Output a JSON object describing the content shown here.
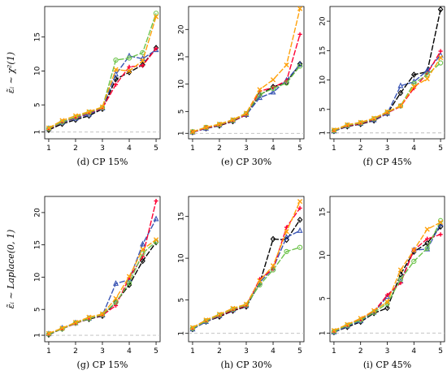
{
  "colors": {
    "black": "#000000",
    "blue": "#3a55b4",
    "red": "#ff0033",
    "green": "#6cc34a",
    "orange": "#ffa10a",
    "reference_line": "#bbbbbb"
  },
  "chart_data": [
    {
      "type": "line",
      "caption": "(d)    CP 15%",
      "ylabel": "ε̃ᵢ ~ χ²(1)",
      "x": [
        1,
        1.5,
        2,
        2.5,
        3,
        3.5,
        4,
        4.5,
        5
      ],
      "xticks": [
        1,
        2,
        3,
        4,
        5
      ],
      "ylim": [
        0,
        19.5
      ],
      "yticks": [
        1,
        5,
        10,
        15
      ],
      "reference_y": 1,
      "series": [
        {
          "color": "black",
          "marker": "diamond",
          "values": [
            1.3,
            2.2,
            2.8,
            3.4,
            4.4,
            8.8,
            9.8,
            10.9,
            13.4
          ]
        },
        {
          "color": "blue",
          "marker": "triangle",
          "values": [
            1.5,
            2.4,
            3.0,
            3.6,
            4.5,
            9.5,
            12.2,
            11.8,
            13.1
          ]
        },
        {
          "color": "red",
          "marker": "plus",
          "values": [
            1.4,
            2.5,
            3.1,
            3.8,
            4.5,
            8.0,
            10.6,
            10.8,
            13.3
          ]
        },
        {
          "color": "green",
          "marker": "circle",
          "values": [
            1.5,
            2.5,
            3.2,
            3.9,
            4.6,
            11.6,
            11.9,
            12.7,
            18.5
          ]
        },
        {
          "color": "orange",
          "marker": "cross",
          "values": [
            1.6,
            2.7,
            3.4,
            4.0,
            4.7,
            10.2,
            10.0,
            11.5,
            18.0
          ]
        }
      ]
    },
    {
      "type": "line",
      "caption": "(e)    CP 30%",
      "x": [
        1,
        1.5,
        2,
        2.5,
        3,
        3.5,
        4,
        4.5,
        5
      ],
      "xticks": [
        1,
        2,
        3,
        4,
        5
      ],
      "ylim": [
        0,
        24.2
      ],
      "yticks": [
        1,
        5,
        10,
        15,
        20
      ],
      "reference_y": 1,
      "series": [
        {
          "color": "black",
          "marker": "diamond",
          "values": [
            1.2,
            1.9,
            2.4,
            3.2,
            4.4,
            8.0,
            9.5,
            10.3,
            13.7
          ]
        },
        {
          "color": "blue",
          "marker": "triangle",
          "values": [
            1.2,
            1.9,
            2.5,
            3.3,
            4.4,
            7.5,
            8.5,
            10.7,
            13.6
          ]
        },
        {
          "color": "red",
          "marker": "plus",
          "values": [
            1.2,
            2.0,
            2.5,
            3.3,
            4.4,
            8.7,
            9.4,
            10.6,
            19.1
          ]
        },
        {
          "color": "green",
          "marker": "circle",
          "values": [
            1.3,
            2.1,
            2.6,
            3.4,
            4.6,
            8.1,
            9.2,
            10.2,
            13.3
          ]
        },
        {
          "color": "orange",
          "marker": "cross",
          "values": [
            1.3,
            2.1,
            2.7,
            3.5,
            4.7,
            9.0,
            10.8,
            13.5,
            23.8
          ]
        }
      ]
    },
    {
      "type": "line",
      "caption": "(f)    CP 45%",
      "x": [
        1,
        1.5,
        2,
        2.5,
        3,
        3.5,
        4,
        4.5,
        5
      ],
      "xticks": [
        1,
        2,
        3,
        4,
        5
      ],
      "ylim": [
        0,
        22.5
      ],
      "yticks": [
        1,
        5,
        10,
        15,
        20
      ],
      "reference_y": 1,
      "series": [
        {
          "color": "black",
          "marker": "diamond",
          "values": [
            1.3,
            2.1,
            2.5,
            3.1,
            4.3,
            7.8,
            10.9,
            11.4,
            22.0
          ]
        },
        {
          "color": "blue",
          "marker": "triangle",
          "values": [
            1.3,
            2.2,
            2.6,
            3.2,
            4.3,
            9.0,
            9.7,
            11.6,
            14.2
          ]
        },
        {
          "color": "red",
          "marker": "plus",
          "values": [
            1.4,
            2.2,
            2.6,
            3.3,
            4.4,
            5.5,
            8.6,
            11.1,
            14.9
          ]
        },
        {
          "color": "green",
          "marker": "circle",
          "values": [
            1.4,
            2.3,
            2.7,
            3.4,
            4.5,
            5.6,
            9.4,
            10.9,
            12.9
          ]
        },
        {
          "color": "orange",
          "marker": "cross",
          "values": [
            1.5,
            2.4,
            2.8,
            3.5,
            4.6,
            5.6,
            8.9,
            10.2,
            13.8
          ]
        }
      ]
    },
    {
      "type": "line",
      "caption": "(g)    CP 15%",
      "ylabel": "ε̃ᵢ ~ Laplace(0, 1)",
      "x": [
        1,
        1.5,
        2,
        2.5,
        3,
        3.5,
        4,
        4.5,
        5
      ],
      "xticks": [
        1,
        2,
        3,
        4,
        5
      ],
      "ylim": [
        0,
        22.5
      ],
      "yticks": [
        1,
        5,
        10,
        15,
        20
      ],
      "reference_y": 1,
      "series": [
        {
          "color": "black",
          "marker": "diamond",
          "values": [
            1.1,
            2.0,
            2.9,
            3.5,
            4.0,
            6.1,
            8.8,
            12.5,
            15.4
          ]
        },
        {
          "color": "blue",
          "marker": "triangle",
          "values": [
            1.2,
            2.1,
            2.9,
            3.6,
            4.1,
            9.0,
            9.6,
            15.1,
            19.0
          ]
        },
        {
          "color": "red",
          "marker": "plus",
          "values": [
            1.2,
            2.0,
            2.8,
            3.6,
            4.1,
            5.6,
            9.9,
            13.2,
            21.8
          ]
        },
        {
          "color": "green",
          "marker": "circle",
          "values": [
            1.2,
            2.0,
            2.9,
            3.6,
            4.2,
            6.1,
            9.1,
            13.7,
            15.5
          ]
        },
        {
          "color": "orange",
          "marker": "cross",
          "values": [
            1.3,
            2.1,
            3.0,
            3.8,
            4.3,
            6.7,
            10.1,
            14.3,
            15.8
          ]
        }
      ]
    },
    {
      "type": "line",
      "caption": "(h)    CP 30%",
      "x": [
        1,
        1.5,
        2,
        2.5,
        3,
        3.5,
        4,
        4.5,
        5
      ],
      "xticks": [
        1,
        2,
        3,
        4,
        5
      ],
      "ylim": [
        0,
        17.4
      ],
      "yticks": [
        1,
        5,
        10,
        15
      ],
      "reference_y": 1,
      "series": [
        {
          "color": "black",
          "marker": "diamond",
          "values": [
            1.5,
            2.4,
            3.0,
            3.7,
            4.2,
            7.0,
            12.3,
            12.2,
            14.6
          ]
        },
        {
          "color": "blue",
          "marker": "triangle",
          "values": [
            1.5,
            2.4,
            3.1,
            3.8,
            4.3,
            7.1,
            8.8,
            12.5,
            13.3
          ]
        },
        {
          "color": "red",
          "marker": "plus",
          "values": [
            1.6,
            2.5,
            3.1,
            3.8,
            4.3,
            7.5,
            8.7,
            13.7,
            16.0
          ]
        },
        {
          "color": "green",
          "marker": "circle",
          "values": [
            1.6,
            2.5,
            3.2,
            3.9,
            4.4,
            6.8,
            8.6,
            10.8,
            11.3
          ]
        },
        {
          "color": "orange",
          "marker": "cross",
          "values": [
            1.7,
            2.6,
            3.3,
            4.0,
            4.5,
            7.3,
            9.1,
            13.2,
            16.8
          ]
        }
      ]
    },
    {
      "type": "line",
      "caption": "(i)    CP 45%",
      "x": [
        1,
        1.5,
        2,
        2.5,
        3,
        3.5,
        4,
        4.5,
        5
      ],
      "xticks": [
        1,
        2,
        3,
        4,
        5
      ],
      "ylim": [
        0,
        16.8
      ],
      "yticks": [
        1,
        5,
        10,
        15
      ],
      "reference_y": 1,
      "series": [
        {
          "color": "black",
          "marker": "diamond",
          "values": [
            1.1,
            1.7,
            2.3,
            3.3,
            3.9,
            7.8,
            10.4,
            11.4,
            13.3
          ]
        },
        {
          "color": "blue",
          "marker": "triangle",
          "values": [
            1.1,
            1.8,
            2.4,
            3.4,
            5.2,
            7.0,
            10.6,
            10.7,
            13.6
          ]
        },
        {
          "color": "red",
          "marker": "plus",
          "values": [
            1.2,
            1.9,
            2.6,
            3.5,
            5.4,
            6.8,
            10.6,
            11.9,
            12.4
          ]
        },
        {
          "color": "green",
          "marker": "circle",
          "values": [
            1.2,
            1.9,
            2.5,
            3.4,
            4.4,
            7.2,
            9.3,
            10.8,
            14.0
          ]
        },
        {
          "color": "orange",
          "marker": "cross",
          "values": [
            1.3,
            2.0,
            2.7,
            3.6,
            4.6,
            8.3,
            10.6,
            13.0,
            13.8
          ]
        }
      ]
    }
  ]
}
